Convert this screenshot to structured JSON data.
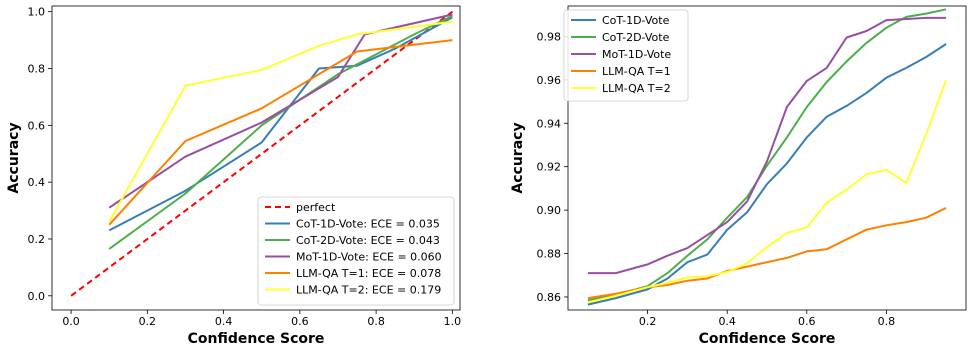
{
  "chart_data": [
    {
      "type": "line",
      "xlabel": "Confidence Score",
      "ylabel": "Accuracy",
      "xlim": [
        -0.05,
        1.02
      ],
      "ylim": [
        -0.05,
        1.02
      ],
      "xticks": [
        "0.0",
        "0.2",
        "0.4",
        "0.6",
        "0.8",
        "1.0"
      ],
      "yticks": [
        "0.0",
        "0.2",
        "0.4",
        "0.6",
        "0.8",
        "1.0"
      ],
      "legend_position": "lower right",
      "series": [
        {
          "name": "perfect",
          "color": "#ff0000",
          "dashed": true,
          "x": [
            0.0,
            1.0
          ],
          "y": [
            0.0,
            1.0
          ]
        },
        {
          "name": "CoT-1D-Vote: ECE = 0.035",
          "color": "#377eb8",
          "x": [
            0.1,
            0.3,
            0.5,
            0.65,
            0.75,
            0.85,
            1.0
          ],
          "y": [
            0.23,
            0.37,
            0.54,
            0.8,
            0.81,
            0.87,
            0.98
          ]
        },
        {
          "name": "CoT-2D-Vote: ECE = 0.043",
          "color": "#4daf4a",
          "x": [
            0.1,
            0.3,
            0.5,
            0.7,
            0.9,
            1.0
          ],
          "y": [
            0.165,
            0.36,
            0.6,
            0.78,
            0.92,
            0.985
          ]
        },
        {
          "name": "MoT-1D-Vote: ECE = 0.060",
          "color": "#984ea3",
          "x": [
            0.1,
            0.3,
            0.5,
            0.7,
            0.77,
            1.0
          ],
          "y": [
            0.31,
            0.49,
            0.61,
            0.77,
            0.92,
            0.99
          ]
        },
        {
          "name": "LLM-QA T=1: ECE = 0.078",
          "color": "#ff7f00",
          "x": [
            0.1,
            0.3,
            0.5,
            0.75,
            1.0
          ],
          "y": [
            0.25,
            0.545,
            0.66,
            0.86,
            0.9
          ]
        },
        {
          "name": "LLM-QA T=2: ECE = 0.179",
          "color": "#ffff33",
          "x": [
            0.1,
            0.3,
            0.5,
            0.65,
            0.75,
            1.0
          ],
          "y": [
            0.26,
            0.74,
            0.795,
            0.88,
            0.92,
            0.965
          ]
        }
      ]
    },
    {
      "type": "line",
      "xlabel": "Confidence Score",
      "ylabel": "Accuracy",
      "xlim": [
        0.0,
        1.0
      ],
      "ylim": [
        0.854,
        0.994
      ],
      "xticks": [
        "0.2",
        "0.4",
        "0.6",
        "0.8"
      ],
      "yticks": [
        "0.86",
        "0.88",
        "0.90",
        "0.92",
        "0.94",
        "0.96",
        "0.98"
      ],
      "legend_position": "upper left",
      "series": [
        {
          "name": "CoT-1D-Vote",
          "color": "#377eb8",
          "x": [
            0.05,
            0.12,
            0.2,
            0.25,
            0.3,
            0.35,
            0.4,
            0.45,
            0.5,
            0.55,
            0.6,
            0.65,
            0.7,
            0.75,
            0.8,
            0.85,
            0.9,
            0.95
          ],
          "y": [
            0.8565,
            0.8595,
            0.8635,
            0.8685,
            0.876,
            0.8795,
            0.891,
            0.899,
            0.912,
            0.9215,
            0.9335,
            0.943,
            0.948,
            0.954,
            0.961,
            0.9655,
            0.9705,
            0.9765
          ]
        },
        {
          "name": "CoT-2D-Vote",
          "color": "#4daf4a",
          "x": [
            0.05,
            0.12,
            0.2,
            0.25,
            0.3,
            0.35,
            0.4,
            0.45,
            0.5,
            0.55,
            0.6,
            0.65,
            0.7,
            0.75,
            0.8,
            0.85,
            0.9,
            0.95
          ],
          "y": [
            0.8585,
            0.861,
            0.865,
            0.871,
            0.879,
            0.8865,
            0.8965,
            0.906,
            0.9205,
            0.9335,
            0.9475,
            0.959,
            0.9685,
            0.977,
            0.984,
            0.989,
            0.9905,
            0.9925
          ]
        },
        {
          "name": "MoT-1D-Vote",
          "color": "#984ea3",
          "x": [
            0.05,
            0.12,
            0.2,
            0.25,
            0.3,
            0.35,
            0.4,
            0.45,
            0.5,
            0.55,
            0.6,
            0.65,
            0.7,
            0.75,
            0.8,
            0.85,
            0.9,
            0.95
          ],
          "y": [
            0.871,
            0.871,
            0.875,
            0.879,
            0.8825,
            0.8885,
            0.8945,
            0.904,
            0.9225,
            0.9475,
            0.9595,
            0.9655,
            0.9795,
            0.9825,
            0.9875,
            0.988,
            0.9885,
            0.9885
          ]
        },
        {
          "name": "LLM-QA T=1",
          "color": "#ff7f00",
          "x": [
            0.05,
            0.12,
            0.2,
            0.25,
            0.3,
            0.35,
            0.4,
            0.45,
            0.5,
            0.55,
            0.6,
            0.65,
            0.7,
            0.75,
            0.8,
            0.85,
            0.9,
            0.95
          ],
          "y": [
            0.8595,
            0.8615,
            0.8645,
            0.8655,
            0.8675,
            0.8685,
            0.872,
            0.874,
            0.876,
            0.878,
            0.881,
            0.882,
            0.8865,
            0.891,
            0.893,
            0.8945,
            0.8965,
            0.901
          ]
        },
        {
          "name": "LLM-QA T=2",
          "color": "#ffff33",
          "x": [
            0.05,
            0.12,
            0.2,
            0.25,
            0.3,
            0.35,
            0.4,
            0.45,
            0.5,
            0.55,
            0.6,
            0.65,
            0.7,
            0.75,
            0.8,
            0.85,
            0.9,
            0.95
          ],
          "y": [
            0.8575,
            0.8605,
            0.8645,
            0.8665,
            0.869,
            0.8695,
            0.8715,
            0.8755,
            0.883,
            0.8895,
            0.892,
            0.9035,
            0.9095,
            0.9165,
            0.9185,
            0.9125,
            0.935,
            0.96
          ]
        }
      ]
    }
  ]
}
